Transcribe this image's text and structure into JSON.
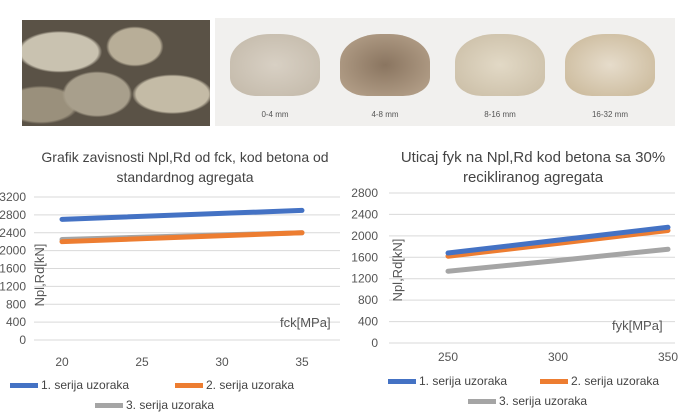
{
  "images": {
    "aggregate_labels": [
      "0-4 mm",
      "4-8 mm",
      "8-16 mm",
      "16-32 mm"
    ]
  },
  "colors": {
    "s1": "#4472c4",
    "s2": "#ed7d31",
    "s3": "#a5a5a5"
  },
  "chart_data": [
    {
      "type": "line",
      "title": "Grafik zavisnosti Npl,Rd od fck, kod betona od standardnog agregata",
      "title_line1": "Grafik zavisnosti Npl,Rd od fck, kod betona od",
      "title_line2": "standardnog agregata",
      "xlabel": "fck[MPa]",
      "ylabel": "Npl,Rd[kN]",
      "x": [
        20,
        35
      ],
      "xticks": [
        "20",
        "25",
        "30",
        "35"
      ],
      "xlim": [
        18,
        37
      ],
      "ylim": [
        0,
        3200
      ],
      "yticks": [
        "3200",
        "2800",
        "2400",
        "2000",
        "1600",
        "1200",
        "800",
        "400",
        "0"
      ],
      "grid": true,
      "legend": "bottom",
      "series": [
        {
          "name": "1. serija uzoraka",
          "values": [
            2700,
            2900
          ]
        },
        {
          "name": "2. serija uzoraka",
          "values": [
            2200,
            2400
          ]
        },
        {
          "name": "3. serija uzoraka",
          "values": [
            2250,
            2400
          ]
        }
      ]
    },
    {
      "type": "line",
      "title": "Uticaj fyk na Npl,Rd kod betona sa 30% recikliranog agregata",
      "title_line1": "Uticaj fyk na Npl,Rd kod betona sa 30%",
      "title_line2": "recikliranog agregata",
      "xlabel": "fyk[MPa]",
      "ylabel": "Npl,Rd[kN]",
      "x": [
        250,
        300,
        350
      ],
      "xticks": [
        "250",
        "300",
        "350"
      ],
      "xlim": [
        225,
        350
      ],
      "ylim": [
        0,
        2800
      ],
      "yticks": [
        "2800",
        "2400",
        "2000",
        "1600",
        "1200",
        "800",
        "400",
        "0"
      ],
      "grid": true,
      "legend": "bottom",
      "series": [
        {
          "name": "1. serija uzoraka",
          "values": [
            1680,
            1920,
            2160
          ]
        },
        {
          "name": "2. serija uzoraka",
          "values": [
            1620,
            1860,
            2100
          ]
        },
        {
          "name": "3. serija uzoraka",
          "values": [
            1340,
            1540,
            1750
          ]
        }
      ]
    }
  ]
}
